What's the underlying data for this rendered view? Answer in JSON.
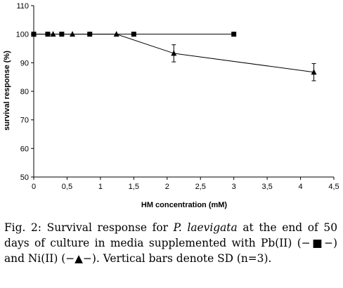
{
  "chart_data": {
    "type": "line",
    "xlabel": "HM concentration (mM)",
    "ylabel": "survival response (%)",
    "xlim": [
      0,
      4.5
    ],
    "ylim": [
      50,
      110
    ],
    "x_ticks": [
      "0",
      "0,5",
      "1",
      "1,5",
      "2",
      "2,5",
      "3",
      "3,5",
      "4",
      "4,5"
    ],
    "y_ticks": [
      "50",
      "60",
      "70",
      "80",
      "90",
      "100",
      "110"
    ],
    "grid": false,
    "series": [
      {
        "marker": "square",
        "color": "#000000",
        "x": [
          0,
          0.21,
          0.42,
          0.84,
          1.5,
          3.0
        ],
        "y": [
          100,
          100,
          100,
          100,
          100,
          100
        ]
      },
      {
        "marker": "triangle",
        "color": "#000000",
        "x": [
          0,
          0.29,
          0.58,
          1.24,
          2.1,
          4.2
        ],
        "y": [
          100,
          100,
          100,
          100,
          93.3,
          86.7
        ],
        "error": [
          0,
          0,
          0,
          0,
          3,
          3
        ]
      }
    ]
  },
  "caption": {
    "prefix": "Fig. 2: Survival response for ",
    "species": "P. laevigata",
    "text": " at the end of 50 days of culture in media supplemented with Pb(II) (−■−) and Ni(II) (−▲−). Vertical bars denote SD (n=3)."
  }
}
